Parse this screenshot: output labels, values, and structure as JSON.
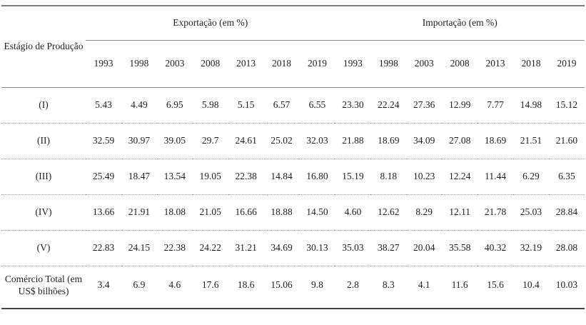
{
  "table": {
    "stage_header": "Estágio de Produção",
    "group_headers": [
      "Exportação (em %)",
      "Importação (em %)"
    ],
    "years_export": [
      "1993",
      "1998",
      "2003",
      "2008",
      "2013",
      "2018",
      "2019"
    ],
    "years_import": [
      "1993",
      "1998",
      "2003",
      "2008",
      "2013",
      "2018",
      "2019"
    ],
    "rows": [
      {
        "label": "(I)",
        "export": [
          "5.43",
          "4.49",
          "6.95",
          "5.98",
          "5.15",
          "6.57",
          "6.55"
        ],
        "import": [
          "23.30",
          "22.24",
          "27.36",
          "12.99",
          "7.77",
          "14.98",
          "15.12"
        ]
      },
      {
        "label": "(II)",
        "export": [
          "32.59",
          "30.97",
          "39.05",
          "29.7",
          "24.61",
          "25.02",
          "32.03"
        ],
        "import": [
          "21.88",
          "18.69",
          "34.09",
          "27.08",
          "18.69",
          "21.51",
          "21.60"
        ]
      },
      {
        "label": "(III)",
        "export": [
          "25.49",
          "18.47",
          "13.54",
          "19.05",
          "22.38",
          "14.84",
          "16.80"
        ],
        "import": [
          "15.19",
          "8.18",
          "10.23",
          "12.24",
          "11.44",
          "6.29",
          "6.35"
        ]
      },
      {
        "label": "(IV)",
        "export": [
          "13.66",
          "21.91",
          "18.08",
          "21.05",
          "16.66",
          "18.88",
          "14.50"
        ],
        "import": [
          "4.60",
          "12.62",
          "8.29",
          "12.11",
          "21.78",
          "25.03",
          "28.84"
        ]
      },
      {
        "label": "(V)",
        "export": [
          "22.83",
          "24.15",
          "22.38",
          "24.22",
          "31.21",
          "34.69",
          "30.13"
        ],
        "import": [
          "35.03",
          "38.27",
          "20.04",
          "35.58",
          "40.32",
          "32.19",
          "28.08"
        ]
      },
      {
        "label": "Comércio Total (em US$ bilhões)",
        "export": [
          "3.4",
          "6.9",
          "4.6",
          "17.6",
          "18.6",
          "15.06",
          "9.8"
        ],
        "import": [
          "2.8",
          "8.3",
          "4.1",
          "11.6",
          "15.6",
          "10.4",
          "10.03"
        ]
      }
    ],
    "colors": {
      "top_rule": "#7e7e7e",
      "bottom_rule": "#474747",
      "mid_rule": "#8c8c8c",
      "dotted_rule": "#9d9d9d",
      "text": "#1e1e1e"
    }
  }
}
